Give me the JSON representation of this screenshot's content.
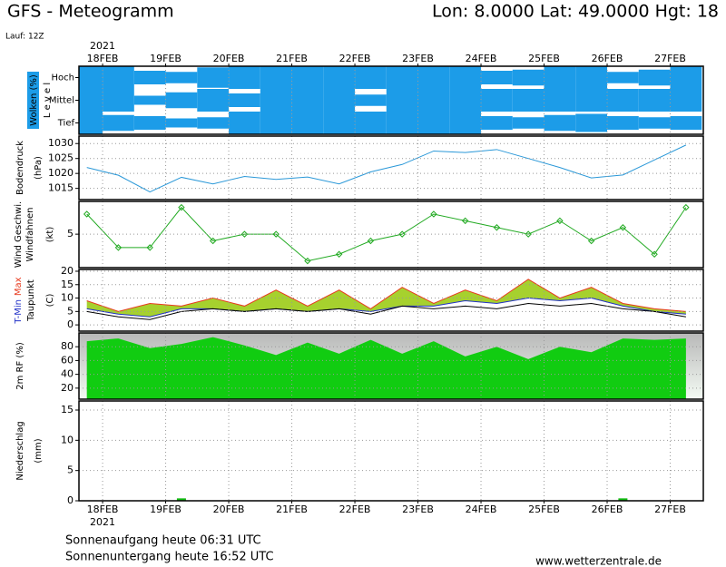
{
  "header": {
    "title": "GFS - Meteogramm",
    "location": "Lon: 8.0000 Lat: 49.0000 Hgt: 18",
    "run": "Lauf: 12Z"
  },
  "chart_data": [
    {
      "type": "cloud-levels",
      "ylabel": [
        "Wolken (%)",
        "L e v e l"
      ],
      "x_year": "2021",
      "x": [
        -0.25,
        0.25,
        0.75,
        1.25,
        1.75,
        2.25,
        2.75,
        3.25,
        3.75,
        4.25,
        4.75,
        5.25,
        5.75,
        6.25,
        6.75,
        7.25,
        7.75,
        8.25,
        8.75,
        9.25
      ],
      "xlim": [
        -0.375,
        9.525
      ],
      "xticks": [
        {
          "value": 0,
          "label": "18FEB"
        },
        {
          "value": 1,
          "label": "19FEB"
        },
        {
          "value": 2,
          "label": "20FEB"
        },
        {
          "value": 3,
          "label": "21FEB"
        },
        {
          "value": 4,
          "label": "22FEB"
        },
        {
          "value": 5,
          "label": "23FEB"
        },
        {
          "value": 6,
          "label": "24FEB"
        },
        {
          "value": 7,
          "label": "25FEB"
        },
        {
          "value": 8,
          "label": "26FEB"
        },
        {
          "value": 9,
          "label": "27FEB"
        }
      ],
      "series": [
        {
          "name": "Hoch",
          "color": "#1c9ce8",
          "values": [
            100,
            100,
            60,
            50,
            90,
            100,
            100,
            100,
            100,
            100,
            100,
            100,
            100,
            60,
            70,
            100,
            100,
            50,
            70,
            100
          ]
        },
        {
          "name": "Mittel",
          "color": "#1c9ce8",
          "values": [
            100,
            100,
            40,
            70,
            100,
            60,
            100,
            100,
            100,
            50,
            100,
            100,
            100,
            100,
            100,
            100,
            100,
            100,
            100,
            100
          ]
        },
        {
          "name": "Tief",
          "color": "#1c9ce8",
          "values": [
            100,
            70,
            60,
            40,
            50,
            100,
            100,
            100,
            100,
            100,
            100,
            100,
            100,
            60,
            50,
            70,
            80,
            60,
            50,
            60
          ]
        }
      ]
    },
    {
      "type": "line",
      "ylabel": [
        "Bodendruck",
        "(hPa)"
      ],
      "x": [
        -0.25,
        0.25,
        0.75,
        1.25,
        1.75,
        2.25,
        2.75,
        3.25,
        3.75,
        4.25,
        4.75,
        5.25,
        5.75,
        6.25,
        6.75,
        7.25,
        7.75,
        8.25,
        8.75,
        9.25
      ],
      "xlim": [
        -0.375,
        9.525
      ],
      "ylim": [
        1011.25,
        1032.5
      ],
      "yticks": [
        1015,
        1020,
        1025,
        1030
      ],
      "series": [
        {
          "color": "#2a98d8",
          "values": [
            1022,
            1019.4,
            1013.8,
            1018.7,
            1016.5,
            1019,
            1018,
            1018.8,
            1016.5,
            1020.5,
            1023,
            1027.5,
            1027,
            1028,
            1025,
            1022,
            1018.5,
            1019.5,
            1024.5,
            1029.5
          ]
        }
      ]
    },
    {
      "type": "line",
      "markers": true,
      "ylabel": [
        "Windfahnen",
        "(kt)"
      ],
      "x": [
        -0.25,
        0.25,
        0.75,
        1.25,
        1.75,
        2.25,
        2.75,
        3.25,
        3.75,
        4.25,
        4.75,
        5.25,
        5.75,
        6.25,
        6.75,
        7.25,
        7.75,
        8.25,
        8.75,
        9.25
      ],
      "xlim": [
        -0.375,
        9.525
      ],
      "ylim": [
        0,
        9.9
      ],
      "yticks": [
        5
      ],
      "series": [
        {
          "name": "Wind Geschwi.",
          "color": "#22aa22",
          "values": [
            8,
            3,
            3,
            9,
            4,
            5,
            5,
            1,
            2,
            4,
            5,
            8,
            7,
            6,
            5,
            7,
            4,
            6,
            2,
            9
          ]
        }
      ]
    },
    {
      "type": "band",
      "fill_color": "#a6d12e",
      "ylabel": [
        "Taupunkt",
        "(C)"
      ],
      "x": [
        -0.25,
        0.25,
        0.75,
        1.25,
        1.75,
        2.25,
        2.75,
        3.25,
        3.75,
        4.25,
        4.75,
        5.25,
        5.75,
        6.25,
        6.75,
        7.25,
        7.75,
        8.25,
        8.75,
        9.25
      ],
      "xlim": [
        -0.375,
        9.525
      ],
      "ylim": [
        -2.33,
        20.67
      ],
      "yticks": [
        0,
        5,
        10,
        15,
        20
      ],
      "series": [
        {
          "name": "Max",
          "color": "#e83a1e",
          "values": [
            9,
            5,
            8,
            7,
            10,
            7,
            13,
            7,
            13,
            6,
            14,
            8,
            13,
            9,
            17,
            10,
            14,
            8,
            6,
            5
          ]
        },
        {
          "name": "T-Min",
          "color": "#2030c8",
          "values": [
            6,
            4,
            3,
            6,
            6,
            5,
            6,
            5,
            6,
            5,
            7,
            7,
            9,
            8,
            10,
            9,
            10,
            7,
            5,
            4
          ]
        },
        {
          "color": "#000000",
          "values": [
            5,
            3,
            2,
            5,
            6,
            5,
            6,
            5,
            6,
            4,
            7,
            6,
            7,
            6,
            8,
            7,
            8,
            6,
            5,
            3
          ]
        }
      ]
    },
    {
      "type": "area",
      "x": [
        -0.25,
        0.25,
        0.75,
        1.25,
        1.75,
        2.25,
        2.75,
        3.25,
        3.75,
        4.25,
        4.75,
        5.25,
        5.75,
        6.25,
        6.75,
        7.25,
        7.75,
        8.25,
        8.75,
        9.25
      ],
      "xlim": [
        -0.375,
        9.525
      ],
      "ylim": [
        4,
        100
      ],
      "yticks": [
        20,
        40,
        60,
        80
      ],
      "series": [
        {
          "name": "2m RF (%)",
          "color": "#11cc11",
          "values": [
            88,
            92,
            78,
            84,
            94,
            82,
            68,
            86,
            70,
            90,
            70,
            88,
            66,
            80,
            62,
            80,
            72,
            92,
            90,
            92
          ]
        }
      ]
    },
    {
      "type": "bar",
      "ylabel": [
        "Niederschlag",
        "(mm)"
      ],
      "x_year": "2021",
      "x": [
        -0.25,
        0.25,
        0.75,
        1.25,
        1.75,
        2.25,
        2.75,
        3.25,
        3.75,
        4.25,
        4.75,
        5.25,
        5.75,
        6.25,
        6.75,
        7.25,
        7.75,
        8.25,
        8.75,
        9.25
      ],
      "xlim": [
        -0.375,
        9.525
      ],
      "ylim": [
        0,
        16.5
      ],
      "yticks": [
        0,
        5,
        10,
        15
      ],
      "xticks": [
        {
          "value": 0,
          "label": "18FEB"
        },
        {
          "value": 1,
          "label": "19FEB"
        },
        {
          "value": 2,
          "label": "20FEB"
        },
        {
          "value": 3,
          "label": "21FEB"
        },
        {
          "value": 4,
          "label": "22FEB"
        },
        {
          "value": 5,
          "label": "23FEB"
        },
        {
          "value": 6,
          "label": "24FEB"
        },
        {
          "value": 7,
          "label": "25FEB"
        },
        {
          "value": 8,
          "label": "26FEB"
        },
        {
          "value": 9,
          "label": "27FEB"
        }
      ],
      "series": [
        {
          "color": "#11bb11",
          "values": [
            0,
            0,
            0,
            0.4,
            0,
            0,
            0,
            0,
            0,
            0,
            0,
            0,
            0,
            0,
            0,
            0,
            0,
            0.4,
            0,
            0
          ]
        }
      ]
    }
  ],
  "footer": {
    "sunrise": "Sonnenaufgang heute 06:31 UTC",
    "sunset": "Sonnenuntergang heute 16:52 UTC",
    "source": "www.wetterzentrale.de"
  }
}
